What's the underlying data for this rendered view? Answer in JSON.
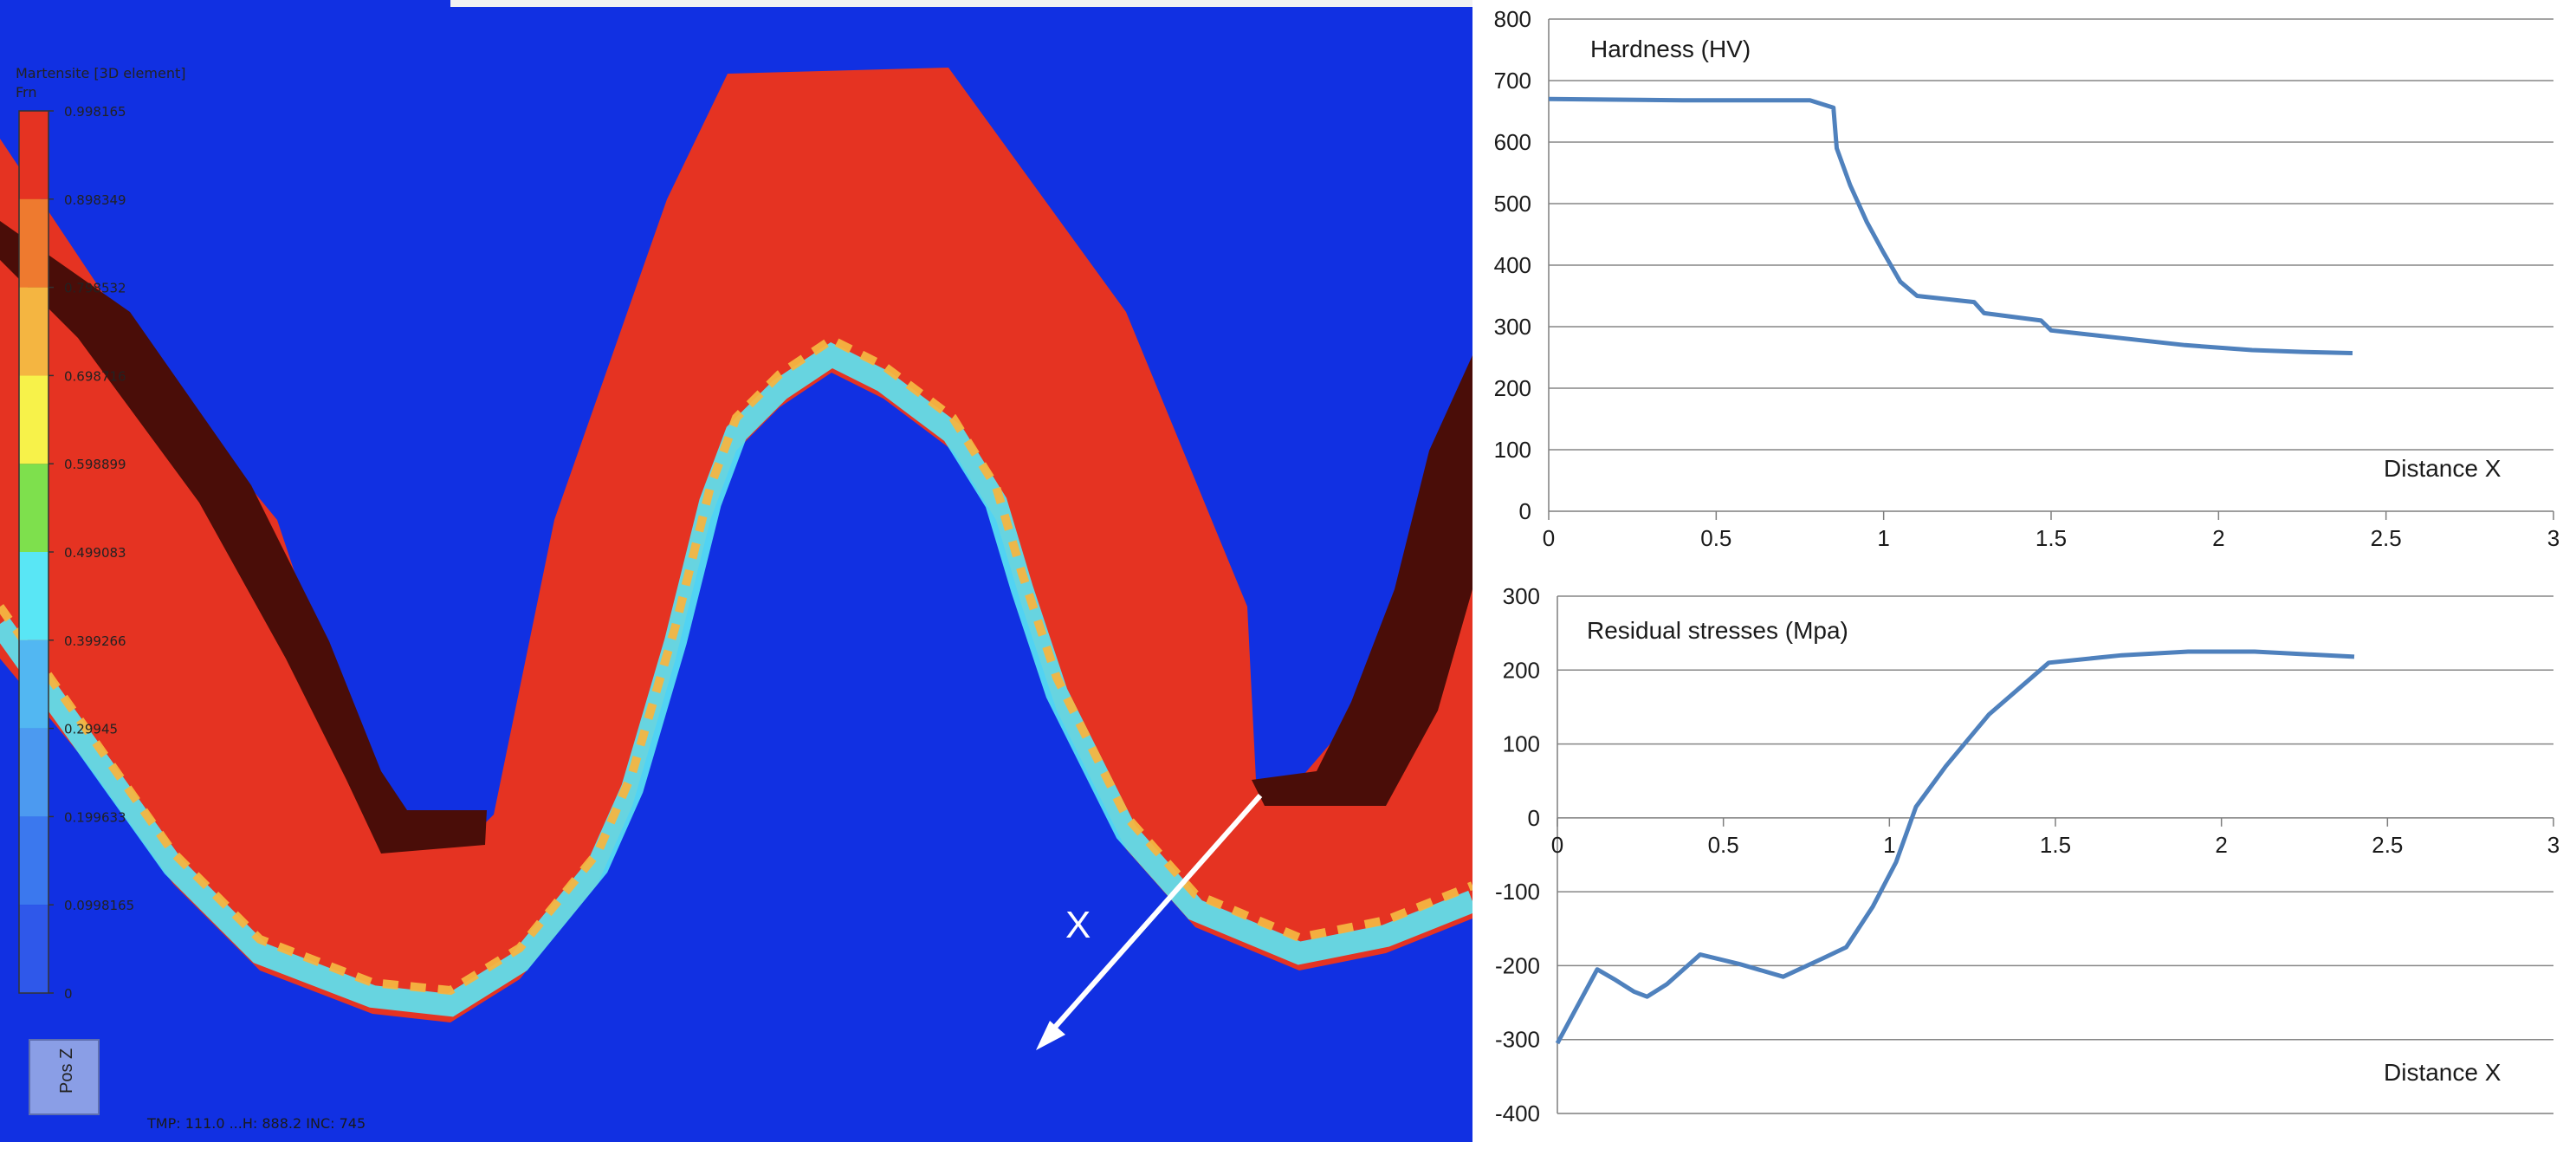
{
  "simulation": {
    "legend_title_line1": "Martensite [3D element]",
    "legend_title_line2": "Frn",
    "legend_values": [
      "0.998165",
      "0.898349",
      "0.798532",
      "0.698716",
      "0.598899",
      "0.499083",
      "0.399266",
      "0.29945",
      "0.199633",
      "0.0998165",
      "0"
    ],
    "legend_colors": [
      "#e53322",
      "#ee7a2f",
      "#f4b541",
      "#f7f24a",
      "#7ee04d",
      "#59e6f5",
      "#52b7f2",
      "#4c9af0",
      "#3b78ee",
      "#2f58ea",
      "#1130e2"
    ],
    "direction_label": "X",
    "orientation_label": "Pos Z",
    "footer_text": "TMP: 111.0  ...H: 888.2  INC: 745",
    "colors": {
      "core": "#1130e2",
      "case": "#e53322",
      "coating": "#4a0d08",
      "arrow": "#ffffff"
    }
  },
  "chart_data": [
    {
      "type": "line",
      "title": "Hardness (HV)",
      "xlabel": "Distance X",
      "ylabel": "",
      "xlim": [
        0,
        3
      ],
      "ylim": [
        0,
        800
      ],
      "x_ticks": [
        "0",
        "0.5",
        "1",
        "1.5",
        "2",
        "2.5",
        "3"
      ],
      "y_ticks": [
        "0",
        "100",
        "200",
        "300",
        "400",
        "500",
        "600",
        "700",
        "800"
      ],
      "grid": true,
      "color": "#4f81bd",
      "series": [
        {
          "x": [
            0,
            0.2,
            0.4,
            0.6,
            0.78,
            0.85,
            0.86,
            0.9,
            0.95,
            1.0,
            1.05,
            1.1,
            1.27,
            1.3,
            1.47,
            1.5,
            1.7,
            1.9,
            2.1,
            2.25,
            2.4
          ],
          "values": [
            670,
            669,
            668,
            668,
            668,
            656,
            590,
            530,
            470,
            420,
            373,
            350,
            340,
            322,
            310,
            294,
            282,
            270,
            262,
            259,
            257
          ]
        }
      ]
    },
    {
      "type": "line",
      "title": "Residual stresses  (Mpa)",
      "xlabel": "Distance X",
      "ylabel": "",
      "xlim": [
        0,
        3
      ],
      "ylim": [
        -400,
        300
      ],
      "x_ticks": [
        "0",
        "0.5",
        "1",
        "1.5",
        "2",
        "2.5",
        "3"
      ],
      "y_ticks": [
        "-400",
        "-300",
        "-200",
        "-100",
        "0",
        "100",
        "200",
        "300"
      ],
      "grid": true,
      "color": "#4f81bd",
      "series": [
        {
          "x": [
            0,
            0.12,
            0.17,
            0.23,
            0.27,
            0.33,
            0.43,
            0.55,
            0.68,
            0.8,
            0.87,
            0.95,
            1.02,
            1.08,
            1.17,
            1.3,
            1.48,
            1.7,
            1.9,
            2.1,
            2.4
          ],
          "values": [
            -305,
            -205,
            -218,
            -235,
            -242,
            -225,
            -185,
            -198,
            -215,
            -190,
            -175,
            -120,
            -60,
            15,
            70,
            140,
            210,
            220,
            225,
            225,
            218
          ]
        }
      ]
    }
  ]
}
